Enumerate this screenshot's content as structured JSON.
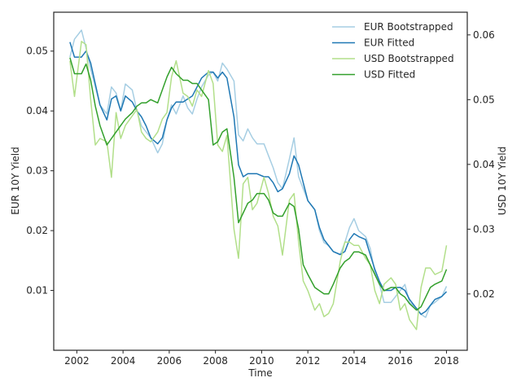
{
  "chart_data": {
    "type": "line",
    "title": "",
    "xlabel": "Time",
    "ylabel_left": "EUR 10Y Yield",
    "ylabel_right": "USD 10Y Yield",
    "xlim": [
      2001.0,
      2018.9
    ],
    "ylim_left": [
      0.0,
      0.0565
    ],
    "ylim_right": [
      0.0113,
      0.0635
    ],
    "x_ticks": [
      2002,
      2004,
      2006,
      2008,
      2010,
      2012,
      2014,
      2016,
      2018
    ],
    "x_tick_labels": [
      "2002",
      "2004",
      "2006",
      "2008",
      "2010",
      "2012",
      "2014",
      "2016",
      "2018"
    ],
    "y_ticks_left": [
      0.01,
      0.02,
      0.03,
      0.04,
      0.05
    ],
    "y_tick_labels_left": [
      "0.01",
      "0.02",
      "0.03",
      "0.04",
      "0.05"
    ],
    "y_ticks_right": [
      0.02,
      0.03,
      0.04,
      0.05,
      0.06
    ],
    "y_tick_labels_right": [
      "0.02",
      "0.03",
      "0.04",
      "0.05",
      "0.06"
    ],
    "grid": false,
    "legend_position": "top-right",
    "series": [
      {
        "name": "EUR Bootstrapped",
        "axis": "left",
        "color": "#a6cee3",
        "x": [
          2001.7,
          2001.9,
          2002.2,
          2002.4,
          2002.6,
          2002.8,
          2003.0,
          2003.3,
          2003.5,
          2003.7,
          2003.9,
          2004.1,
          2004.4,
          2004.6,
          2004.8,
          2005.0,
          2005.2,
          2005.5,
          2005.7,
          2005.9,
          2006.1,
          2006.3,
          2006.6,
          2006.8,
          2007.0,
          2007.2,
          2007.4,
          2007.7,
          2007.9,
          2008.1,
          2008.3,
          2008.5,
          2008.8,
          2009.0,
          2009.2,
          2009.4,
          2009.6,
          2009.8,
          2010.1,
          2010.3,
          2010.5,
          2010.7,
          2010.9,
          2011.2,
          2011.4,
          2011.6,
          2011.8,
          2012.0,
          2012.3,
          2012.5,
          2012.7,
          2012.9,
          2013.1,
          2013.4,
          2013.6,
          2013.8,
          2014.0,
          2014.2,
          2014.5,
          2014.7,
          2014.9,
          2015.1,
          2015.3,
          2015.6,
          2015.8,
          2016.0,
          2016.2,
          2016.4,
          2016.7,
          2016.9,
          2017.1,
          2017.3,
          2017.5,
          2017.8,
          2018.0
        ],
        "y": [
          0.049,
          0.052,
          0.0535,
          0.0505,
          0.047,
          0.044,
          0.041,
          0.0395,
          0.044,
          0.043,
          0.04,
          0.0445,
          0.0435,
          0.04,
          0.0375,
          0.0365,
          0.0355,
          0.033,
          0.0345,
          0.0385,
          0.041,
          0.0395,
          0.0425,
          0.0405,
          0.0395,
          0.042,
          0.044,
          0.046,
          0.0465,
          0.045,
          0.048,
          0.047,
          0.045,
          0.036,
          0.035,
          0.037,
          0.0355,
          0.0345,
          0.0345,
          0.0325,
          0.0305,
          0.028,
          0.027,
          0.032,
          0.0355,
          0.029,
          0.027,
          0.025,
          0.0235,
          0.02,
          0.018,
          0.0175,
          0.0165,
          0.016,
          0.018,
          0.0205,
          0.022,
          0.02,
          0.019,
          0.017,
          0.013,
          0.011,
          0.008,
          0.008,
          0.009,
          0.01,
          0.011,
          0.008,
          0.007,
          0.006,
          0.0055,
          0.0075,
          0.008,
          0.009,
          0.0107
        ]
      },
      {
        "name": "EUR Fitted",
        "axis": "left",
        "color": "#1f78b4",
        "x": [
          2001.7,
          2001.9,
          2002.2,
          2002.4,
          2002.6,
          2002.8,
          2003.0,
          2003.3,
          2003.5,
          2003.7,
          2003.9,
          2004.1,
          2004.4,
          2004.6,
          2004.8,
          2005.0,
          2005.2,
          2005.5,
          2005.7,
          2005.9,
          2006.1,
          2006.3,
          2006.6,
          2006.8,
          2007.0,
          2007.2,
          2007.4,
          2007.7,
          2007.9,
          2008.1,
          2008.3,
          2008.5,
          2008.8,
          2009.0,
          2009.2,
          2009.4,
          2009.6,
          2009.8,
          2010.1,
          2010.3,
          2010.5,
          2010.7,
          2010.9,
          2011.2,
          2011.4,
          2011.6,
          2011.8,
          2012.0,
          2012.3,
          2012.5,
          2012.7,
          2012.9,
          2013.1,
          2013.4,
          2013.6,
          2013.8,
          2014.0,
          2014.2,
          2014.5,
          2014.7,
          2014.9,
          2015.1,
          2015.3,
          2015.6,
          2015.8,
          2016.0,
          2016.2,
          2016.4,
          2016.7,
          2016.9,
          2017.1,
          2017.3,
          2017.5,
          2017.8,
          2018.0
        ],
        "y": [
          0.0515,
          0.049,
          0.049,
          0.05,
          0.048,
          0.0445,
          0.041,
          0.0385,
          0.042,
          0.0425,
          0.04,
          0.0425,
          0.0415,
          0.04,
          0.039,
          0.0375,
          0.0355,
          0.0345,
          0.0355,
          0.0385,
          0.0405,
          0.0415,
          0.0415,
          0.042,
          0.0425,
          0.044,
          0.0455,
          0.0465,
          0.0465,
          0.0455,
          0.0465,
          0.0455,
          0.039,
          0.031,
          0.029,
          0.0295,
          0.0295,
          0.0295,
          0.029,
          0.029,
          0.028,
          0.0265,
          0.027,
          0.0295,
          0.0325,
          0.031,
          0.028,
          0.025,
          0.0235,
          0.0205,
          0.0185,
          0.0175,
          0.0165,
          0.016,
          0.0165,
          0.0185,
          0.0195,
          0.019,
          0.0185,
          0.016,
          0.0135,
          0.0115,
          0.01,
          0.01,
          0.0105,
          0.0105,
          0.01,
          0.0085,
          0.007,
          0.006,
          0.0065,
          0.0075,
          0.0085,
          0.009,
          0.0098
        ]
      },
      {
        "name": "USD Bootstrapped",
        "axis": "right",
        "color": "#b2df8a",
        "x": [
          2001.7,
          2001.9,
          2002.2,
          2002.4,
          2002.6,
          2002.8,
          2003.0,
          2003.3,
          2003.5,
          2003.7,
          2003.9,
          2004.1,
          2004.4,
          2004.6,
          2004.8,
          2005.0,
          2005.2,
          2005.5,
          2005.7,
          2005.9,
          2006.1,
          2006.3,
          2006.6,
          2006.8,
          2007.0,
          2007.2,
          2007.4,
          2007.7,
          2007.9,
          2008.1,
          2008.3,
          2008.5,
          2008.8,
          2009.0,
          2009.2,
          2009.4,
          2009.6,
          2009.8,
          2010.1,
          2010.3,
          2010.5,
          2010.7,
          2010.9,
          2011.2,
          2011.4,
          2011.6,
          2011.8,
          2012.0,
          2012.3,
          2012.5,
          2012.7,
          2012.9,
          2013.1,
          2013.4,
          2013.6,
          2013.8,
          2014.0,
          2014.2,
          2014.5,
          2014.7,
          2014.9,
          2015.1,
          2015.3,
          2015.6,
          2015.8,
          2016.0,
          2016.2,
          2016.4,
          2016.7,
          2016.9,
          2017.1,
          2017.3,
          2017.5,
          2017.8,
          2018.0
        ],
        "y": [
          0.056,
          0.0505,
          0.059,
          0.0585,
          0.05,
          0.043,
          0.044,
          0.0435,
          0.038,
          0.048,
          0.044,
          0.046,
          0.0475,
          0.0485,
          0.045,
          0.044,
          0.0435,
          0.045,
          0.047,
          0.048,
          0.0535,
          0.056,
          0.051,
          0.0505,
          0.049,
          0.0515,
          0.0505,
          0.0545,
          0.0525,
          0.043,
          0.042,
          0.0445,
          0.03,
          0.0255,
          0.037,
          0.038,
          0.033,
          0.034,
          0.038,
          0.0355,
          0.032,
          0.0305,
          0.026,
          0.0345,
          0.0355,
          0.028,
          0.022,
          0.0205,
          0.0175,
          0.0185,
          0.0165,
          0.017,
          0.0185,
          0.025,
          0.028,
          0.028,
          0.0275,
          0.0275,
          0.0255,
          0.0245,
          0.0205,
          0.0185,
          0.0215,
          0.0225,
          0.0215,
          0.0175,
          0.0185,
          0.016,
          0.0145,
          0.021,
          0.024,
          0.024,
          0.023,
          0.0235,
          0.0275
        ]
      },
      {
        "name": "USD Fitted",
        "axis": "right",
        "color": "#33a02c",
        "x": [
          2001.7,
          2001.9,
          2002.2,
          2002.4,
          2002.6,
          2002.8,
          2003.0,
          2003.3,
          2003.5,
          2003.7,
          2003.9,
          2004.1,
          2004.4,
          2004.6,
          2004.8,
          2005.0,
          2005.2,
          2005.5,
          2005.7,
          2005.9,
          2006.1,
          2006.3,
          2006.6,
          2006.8,
          2007.0,
          2007.2,
          2007.4,
          2007.7,
          2007.9,
          2008.1,
          2008.3,
          2008.5,
          2008.8,
          2009.0,
          2009.2,
          2009.4,
          2009.6,
          2009.8,
          2010.1,
          2010.3,
          2010.5,
          2010.7,
          2010.9,
          2011.2,
          2011.4,
          2011.6,
          2011.8,
          2012.0,
          2012.3,
          2012.5,
          2012.7,
          2012.9,
          2013.1,
          2013.4,
          2013.6,
          2013.8,
          2014.0,
          2014.2,
          2014.5,
          2014.7,
          2014.9,
          2015.1,
          2015.3,
          2015.6,
          2015.8,
          2016.0,
          2016.2,
          2016.4,
          2016.7,
          2016.9,
          2017.1,
          2017.3,
          2017.5,
          2017.8,
          2018.0
        ],
        "y": [
          0.0565,
          0.054,
          0.054,
          0.0555,
          0.053,
          0.049,
          0.046,
          0.043,
          0.044,
          0.045,
          0.046,
          0.047,
          0.048,
          0.049,
          0.0495,
          0.0495,
          0.05,
          0.0495,
          0.0515,
          0.0535,
          0.055,
          0.054,
          0.053,
          0.053,
          0.0525,
          0.0525,
          0.0515,
          0.05,
          0.043,
          0.0435,
          0.045,
          0.0455,
          0.038,
          0.031,
          0.0325,
          0.034,
          0.0345,
          0.0355,
          0.0355,
          0.0345,
          0.0325,
          0.032,
          0.032,
          0.034,
          0.0335,
          0.03,
          0.0245,
          0.023,
          0.021,
          0.0205,
          0.02,
          0.02,
          0.0215,
          0.024,
          0.025,
          0.0255,
          0.0265,
          0.0265,
          0.026,
          0.0245,
          0.023,
          0.0215,
          0.0205,
          0.021,
          0.021,
          0.02,
          0.0195,
          0.0185,
          0.0175,
          0.018,
          0.0195,
          0.021,
          0.0215,
          0.022,
          0.0238
        ]
      }
    ]
  }
}
